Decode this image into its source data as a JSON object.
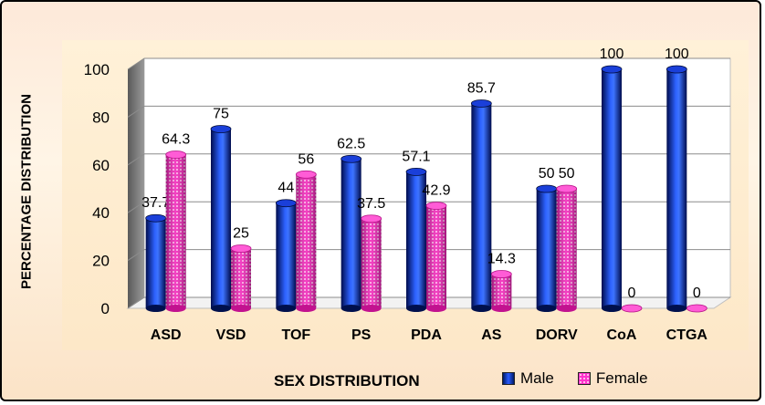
{
  "chart_data": {
    "type": "bar",
    "categories": [
      "ASD",
      "VSD",
      "TOF",
      "PS",
      "PDA",
      "AS",
      "DORV",
      "CoA",
      "CTGA"
    ],
    "series": [
      {
        "name": "Male",
        "values": [
          37.7,
          75,
          44,
          62.5,
          57.1,
          85.7,
          50,
          100,
          100
        ],
        "color": "#0a2bd6"
      },
      {
        "name": "Female",
        "values": [
          64.3,
          25,
          56,
          37.5,
          42.9,
          14.3,
          50,
          0,
          0
        ],
        "color": "#ff33cc"
      }
    ],
    "ylabel": "PERCENTAGE DISTRIBUTION",
    "xlabel": "SEX DISTRIBUTION",
    "ylim": [
      0,
      100
    ],
    "yticks": [
      0,
      20,
      40,
      60,
      80,
      100
    ],
    "grid": true,
    "legend_position": "bottom-right"
  }
}
